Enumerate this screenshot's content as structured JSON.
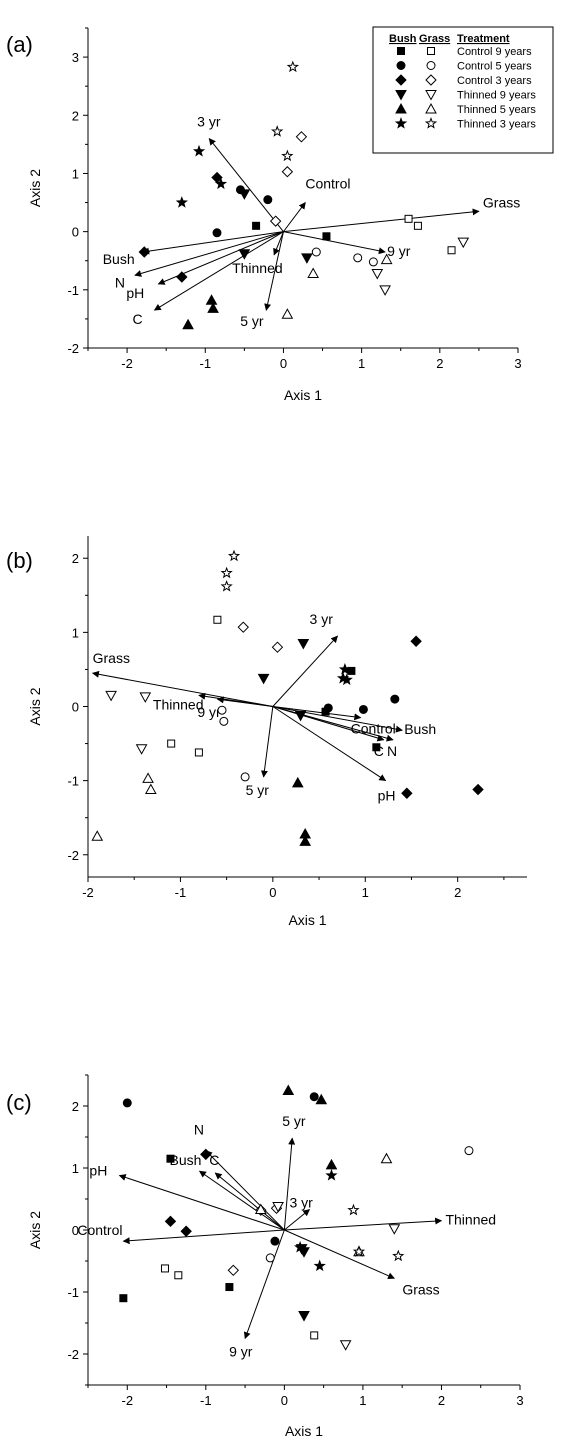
{
  "legend": {
    "headers": [
      "Bush",
      "Grass",
      "Treatment"
    ],
    "entries": [
      {
        "treatment": "Control 9 years",
        "shape": "square"
      },
      {
        "treatment": "Control 5 years",
        "shape": "circle"
      },
      {
        "treatment": "Control 3 years",
        "shape": "diamond"
      },
      {
        "treatment": "Thinned 9 years",
        "shape": "triangle-down"
      },
      {
        "treatment": "Thinned 5 years",
        "shape": "triangle-up"
      },
      {
        "treatment": "Thinned 3 years",
        "shape": "star"
      }
    ]
  },
  "chart_data": [
    {
      "type": "scatter",
      "panel_label": "(a)",
      "xlabel": "Axis 1",
      "ylabel": "Axis 2",
      "xlim": [
        -2.5,
        3
      ],
      "ylim": [
        -2,
        3.5
      ],
      "xticks": [
        -2,
        -1,
        0,
        1,
        2,
        3
      ],
      "yticks": [
        -2,
        -1,
        0,
        1,
        2,
        3
      ],
      "points": [
        {
          "g": "bush",
          "s": "square",
          "x": -0.35,
          "y": 0.1
        },
        {
          "g": "bush",
          "s": "square",
          "x": 0.55,
          "y": -0.08
        },
        {
          "g": "grass",
          "s": "square",
          "x": 1.6,
          "y": 0.22
        },
        {
          "g": "grass",
          "s": "square",
          "x": 1.72,
          "y": 0.1
        },
        {
          "g": "grass",
          "s": "square",
          "x": 2.15,
          "y": -0.32
        },
        {
          "g": "bush",
          "s": "circle",
          "x": -0.55,
          "y": 0.72
        },
        {
          "g": "bush",
          "s": "circle",
          "x": -0.2,
          "y": 0.55
        },
        {
          "g": "bush",
          "s": "circle",
          "x": -0.85,
          "y": -0.02
        },
        {
          "g": "grass",
          "s": "circle",
          "x": 0.42,
          "y": -0.35
        },
        {
          "g": "grass",
          "s": "circle",
          "x": 0.95,
          "y": -0.45
        },
        {
          "g": "grass",
          "s": "circle",
          "x": 1.15,
          "y": -0.52
        },
        {
          "g": "bush",
          "s": "diamond",
          "x": -0.85,
          "y": 0.93
        },
        {
          "g": "bush",
          "s": "diamond",
          "x": -1.78,
          "y": -0.35
        },
        {
          "g": "bush",
          "s": "diamond",
          "x": -1.3,
          "y": -0.78
        },
        {
          "g": "grass",
          "s": "diamond",
          "x": 0.23,
          "y": 1.63
        },
        {
          "g": "grass",
          "s": "diamond",
          "x": 0.05,
          "y": 1.03
        },
        {
          "g": "grass",
          "s": "diamond",
          "x": -0.1,
          "y": 0.18
        },
        {
          "g": "bush",
          "s": "triangle-down",
          "x": -0.5,
          "y": 0.65
        },
        {
          "g": "bush",
          "s": "triangle-down",
          "x": -0.5,
          "y": -0.38
        },
        {
          "g": "bush",
          "s": "triangle-down",
          "x": 0.3,
          "y": -0.45
        },
        {
          "g": "grass",
          "s": "triangle-down",
          "x": 1.2,
          "y": -0.72
        },
        {
          "g": "grass",
          "s": "triangle-down",
          "x": 1.3,
          "y": -1.0
        },
        {
          "g": "grass",
          "s": "triangle-down",
          "x": 2.3,
          "y": -0.18
        },
        {
          "g": "bush",
          "s": "triangle-up",
          "x": -0.92,
          "y": -1.18
        },
        {
          "g": "bush",
          "s": "triangle-up",
          "x": -0.9,
          "y": -1.32
        },
        {
          "g": "bush",
          "s": "triangle-up",
          "x": -1.22,
          "y": -1.6
        },
        {
          "g": "grass",
          "s": "triangle-up",
          "x": 0.38,
          "y": -0.72
        },
        {
          "g": "grass",
          "s": "triangle-up",
          "x": 1.32,
          "y": -0.48
        },
        {
          "g": "grass",
          "s": "triangle-up",
          "x": 0.05,
          "y": -1.42
        },
        {
          "g": "bush",
          "s": "star",
          "x": -1.08,
          "y": 1.38
        },
        {
          "g": "bush",
          "s": "star",
          "x": -1.3,
          "y": 0.5
        },
        {
          "g": "bush",
          "s": "star",
          "x": -0.8,
          "y": 0.82
        },
        {
          "g": "grass",
          "s": "star",
          "x": 0.12,
          "y": 2.83
        },
        {
          "g": "grass",
          "s": "star",
          "x": -0.08,
          "y": 1.72
        },
        {
          "g": "grass",
          "s": "star",
          "x": 0.05,
          "y": 1.3
        }
      ],
      "vectors": [
        {
          "label": "3 yr",
          "x": -0.95,
          "y": 1.6
        },
        {
          "label": "Control",
          "x": 0.28,
          "y": 0.5
        },
        {
          "label": "Grass",
          "x": 2.5,
          "y": 0.35
        },
        {
          "label": "9 yr",
          "x": 1.3,
          "y": -0.35
        },
        {
          "label": "Thinned",
          "x": -0.12,
          "y": -0.4
        },
        {
          "label": "5 yr",
          "x": -0.22,
          "y": -1.35
        },
        {
          "label": "Bush",
          "x": -1.8,
          "y": -0.35
        },
        {
          "label": "N",
          "x": -1.9,
          "y": -0.75
        },
        {
          "label": "pH",
          "x": -1.6,
          "y": -0.9
        },
        {
          "label": "C",
          "x": -1.65,
          "y": -1.35
        }
      ]
    },
    {
      "type": "scatter",
      "panel_label": "(b)",
      "xlabel": "Axis 1",
      "ylabel": "Axis 2",
      "xlim": [
        -2,
        2.75
      ],
      "ylim": [
        -2.3,
        2.3
      ],
      "xticks": [
        -2,
        -1,
        0,
        1,
        2
      ],
      "yticks": [
        -2,
        -1,
        0,
        1,
        2
      ],
      "points": [
        {
          "g": "bush",
          "s": "square",
          "x": 0.85,
          "y": 0.48
        },
        {
          "g": "bush",
          "s": "square",
          "x": 0.57,
          "y": -0.07
        },
        {
          "g": "bush",
          "s": "square",
          "x": 1.12,
          "y": -0.55
        },
        {
          "g": "grass",
          "s": "square",
          "x": -0.6,
          "y": 1.17
        },
        {
          "g": "grass",
          "s": "square",
          "x": -1.1,
          "y": -0.5
        },
        {
          "g": "grass",
          "s": "square",
          "x": -0.8,
          "y": -0.62
        },
        {
          "g": "bush",
          "s": "circle",
          "x": 0.6,
          "y": -0.02
        },
        {
          "g": "bush",
          "s": "circle",
          "x": 0.98,
          "y": -0.04
        },
        {
          "g": "bush",
          "s": "circle",
          "x": 1.32,
          "y": 0.1
        },
        {
          "g": "grass",
          "s": "circle",
          "x": -0.55,
          "y": -0.05
        },
        {
          "g": "grass",
          "s": "circle",
          "x": -0.53,
          "y": -0.2
        },
        {
          "g": "grass",
          "s": "circle",
          "x": -0.3,
          "y": -0.95
        },
        {
          "g": "bush",
          "s": "diamond",
          "x": 1.55,
          "y": 0.88
        },
        {
          "g": "bush",
          "s": "diamond",
          "x": 1.45,
          "y": -1.17
        },
        {
          "g": "bush",
          "s": "diamond",
          "x": 2.22,
          "y": -1.12
        },
        {
          "g": "grass",
          "s": "diamond",
          "x": -0.32,
          "y": 1.07
        },
        {
          "g": "grass",
          "s": "diamond",
          "x": 0.05,
          "y": 0.8
        },
        {
          "g": "bush",
          "s": "triangle-down",
          "x": 0.33,
          "y": 0.85
        },
        {
          "g": "bush",
          "s": "triangle-down",
          "x": -0.1,
          "y": 0.38
        },
        {
          "g": "bush",
          "s": "triangle-down",
          "x": 0.3,
          "y": -0.12
        },
        {
          "g": "grass",
          "s": "triangle-down",
          "x": -1.75,
          "y": 0.15
        },
        {
          "g": "grass",
          "s": "triangle-down",
          "x": -1.38,
          "y": 0.13
        },
        {
          "g": "grass",
          "s": "triangle-down",
          "x": -1.42,
          "y": -0.57
        },
        {
          "g": "bush",
          "s": "triangle-up",
          "x": 0.27,
          "y": -1.03
        },
        {
          "g": "bush",
          "s": "triangle-up",
          "x": 0.35,
          "y": -1.72
        },
        {
          "g": "bush",
          "s": "triangle-up",
          "x": 0.35,
          "y": -1.82
        },
        {
          "g": "grass",
          "s": "triangle-up",
          "x": -1.35,
          "y": -0.97
        },
        {
          "g": "grass",
          "s": "triangle-up",
          "x": -1.32,
          "y": -1.12
        },
        {
          "g": "grass",
          "s": "triangle-up",
          "x": -1.9,
          "y": -1.75
        },
        {
          "g": "bush",
          "s": "star",
          "x": 0.78,
          "y": 0.5
        },
        {
          "g": "bush",
          "s": "star",
          "x": 0.76,
          "y": 0.38
        },
        {
          "g": "bush",
          "s": "star",
          "x": 0.8,
          "y": 0.36
        },
        {
          "g": "grass",
          "s": "star",
          "x": -0.42,
          "y": 2.03
        },
        {
          "g": "grass",
          "s": "star",
          "x": -0.5,
          "y": 1.8
        },
        {
          "g": "grass",
          "s": "star",
          "x": -0.5,
          "y": 1.62
        }
      ],
      "vectors": [
        {
          "label": "3 yr",
          "x": 0.7,
          "y": 0.95
        },
        {
          "label": "Grass",
          "x": -1.95,
          "y": 0.45
        },
        {
          "label": "Thinned",
          "x": -0.8,
          "y": 0.15
        },
        {
          "label": "9 yr",
          "x": -0.6,
          "y": 0.1
        },
        {
          "label": "Control",
          "x": 0.95,
          "y": -0.15
        },
        {
          "label": "Bush",
          "x": 1.4,
          "y": -0.32
        },
        {
          "label": "C",
          "x": 1.2,
          "y": -0.45
        },
        {
          "label": "N",
          "x": 1.3,
          "y": -0.45
        },
        {
          "label": "pH",
          "x": 1.22,
          "y": -1.0
        },
        {
          "label": "5 yr",
          "x": -0.1,
          "y": -0.95
        }
      ]
    },
    {
      "type": "scatter",
      "panel_label": "(c)",
      "xlabel": "Axis 1",
      "ylabel": "Axis 2",
      "xlim": [
        -2.5,
        3
      ],
      "ylim": [
        -2.5,
        2.5
      ],
      "xticks": [
        -2,
        -1,
        0,
        1,
        2,
        3
      ],
      "yticks": [
        -2,
        -1,
        0,
        1,
        2
      ],
      "points": [
        {
          "g": "bush",
          "s": "square",
          "x": -1.45,
          "y": 1.15
        },
        {
          "g": "bush",
          "s": "square",
          "x": -2.05,
          "y": -1.1
        },
        {
          "g": "bush",
          "s": "square",
          "x": -0.7,
          "y": -0.92
        },
        {
          "g": "grass",
          "s": "square",
          "x": -1.52,
          "y": -0.62
        },
        {
          "g": "grass",
          "s": "square",
          "x": -1.35,
          "y": -0.73
        },
        {
          "g": "grass",
          "s": "square",
          "x": 0.38,
          "y": -1.7
        },
        {
          "g": "bush",
          "s": "circle",
          "x": -2.0,
          "y": 2.05
        },
        {
          "g": "bush",
          "s": "circle",
          "x": 0.38,
          "y": 2.15
        },
        {
          "g": "bush",
          "s": "circle",
          "x": -0.12,
          "y": -0.18
        },
        {
          "g": "grass",
          "s": "circle",
          "x": 2.35,
          "y": 1.28
        },
        {
          "g": "grass",
          "s": "circle",
          "x": -0.18,
          "y": -0.45
        },
        {
          "g": "bush",
          "s": "diamond",
          "x": -1.45,
          "y": 0.14
        },
        {
          "g": "bush",
          "s": "diamond",
          "x": -1.25,
          "y": -0.02
        },
        {
          "g": "bush",
          "s": "diamond",
          "x": -1.0,
          "y": 1.22
        },
        {
          "g": "grass",
          "s": "diamond",
          "x": -0.65,
          "y": -0.65
        },
        {
          "g": "grass",
          "s": "diamond",
          "x": -0.3,
          "y": 0.32
        },
        {
          "g": "grass",
          "s": "diamond",
          "x": -0.1,
          "y": 0.35
        },
        {
          "g": "bush",
          "s": "triangle-down",
          "x": 0.22,
          "y": -0.3
        },
        {
          "g": "bush",
          "s": "triangle-down",
          "x": 0.25,
          "y": -0.35
        },
        {
          "g": "bush",
          "s": "triangle-down",
          "x": 0.25,
          "y": -1.38
        },
        {
          "g": "grass",
          "s": "triangle-down",
          "x": -0.08,
          "y": 0.38
        },
        {
          "g": "grass",
          "s": "triangle-down",
          "x": 1.4,
          "y": 0.02
        },
        {
          "g": "grass",
          "s": "triangle-down",
          "x": 0.78,
          "y": -1.85
        },
        {
          "g": "bush",
          "s": "triangle-up",
          "x": 0.05,
          "y": 2.25
        },
        {
          "g": "bush",
          "s": "triangle-up",
          "x": 0.47,
          "y": 2.1
        },
        {
          "g": "bush",
          "s": "triangle-up",
          "x": 0.6,
          "y": 1.05
        },
        {
          "g": "grass",
          "s": "triangle-up",
          "x": 1.3,
          "y": 1.15
        },
        {
          "g": "grass",
          "s": "triangle-up",
          "x": -0.3,
          "y": 0.33
        },
        {
          "g": "grass",
          "s": "triangle-up",
          "x": 0.95,
          "y": -0.35
        },
        {
          "g": "bush",
          "s": "star",
          "x": 0.6,
          "y": 0.88
        },
        {
          "g": "bush",
          "s": "star",
          "x": 0.2,
          "y": -0.28
        },
        {
          "g": "bush",
          "s": "star",
          "x": 0.45,
          "y": -0.58
        },
        {
          "g": "grass",
          "s": "star",
          "x": 0.88,
          "y": 0.32
        },
        {
          "g": "grass",
          "s": "star",
          "x": 0.95,
          "y": -0.35
        },
        {
          "g": "grass",
          "s": "star",
          "x": 1.45,
          "y": -0.42
        }
      ],
      "vectors": [
        {
          "label": "5 yr",
          "x": 0.1,
          "y": 1.48
        },
        {
          "label": "N",
          "x": -1.0,
          "y": 1.28
        },
        {
          "label": "Bush",
          "x": -1.08,
          "y": 0.95
        },
        {
          "label": "C",
          "x": -0.88,
          "y": 0.92
        },
        {
          "label": "pH",
          "x": -2.1,
          "y": 0.88
        },
        {
          "label": "3 yr",
          "x": 0.32,
          "y": 0.33
        },
        {
          "label": "Thinned",
          "x": 2.0,
          "y": 0.15
        },
        {
          "label": "Control",
          "x": -2.05,
          "y": -0.18
        },
        {
          "label": "Grass",
          "x": 1.4,
          "y": -0.78
        },
        {
          "label": "9 yr",
          "x": -0.5,
          "y": -1.75
        }
      ]
    }
  ]
}
